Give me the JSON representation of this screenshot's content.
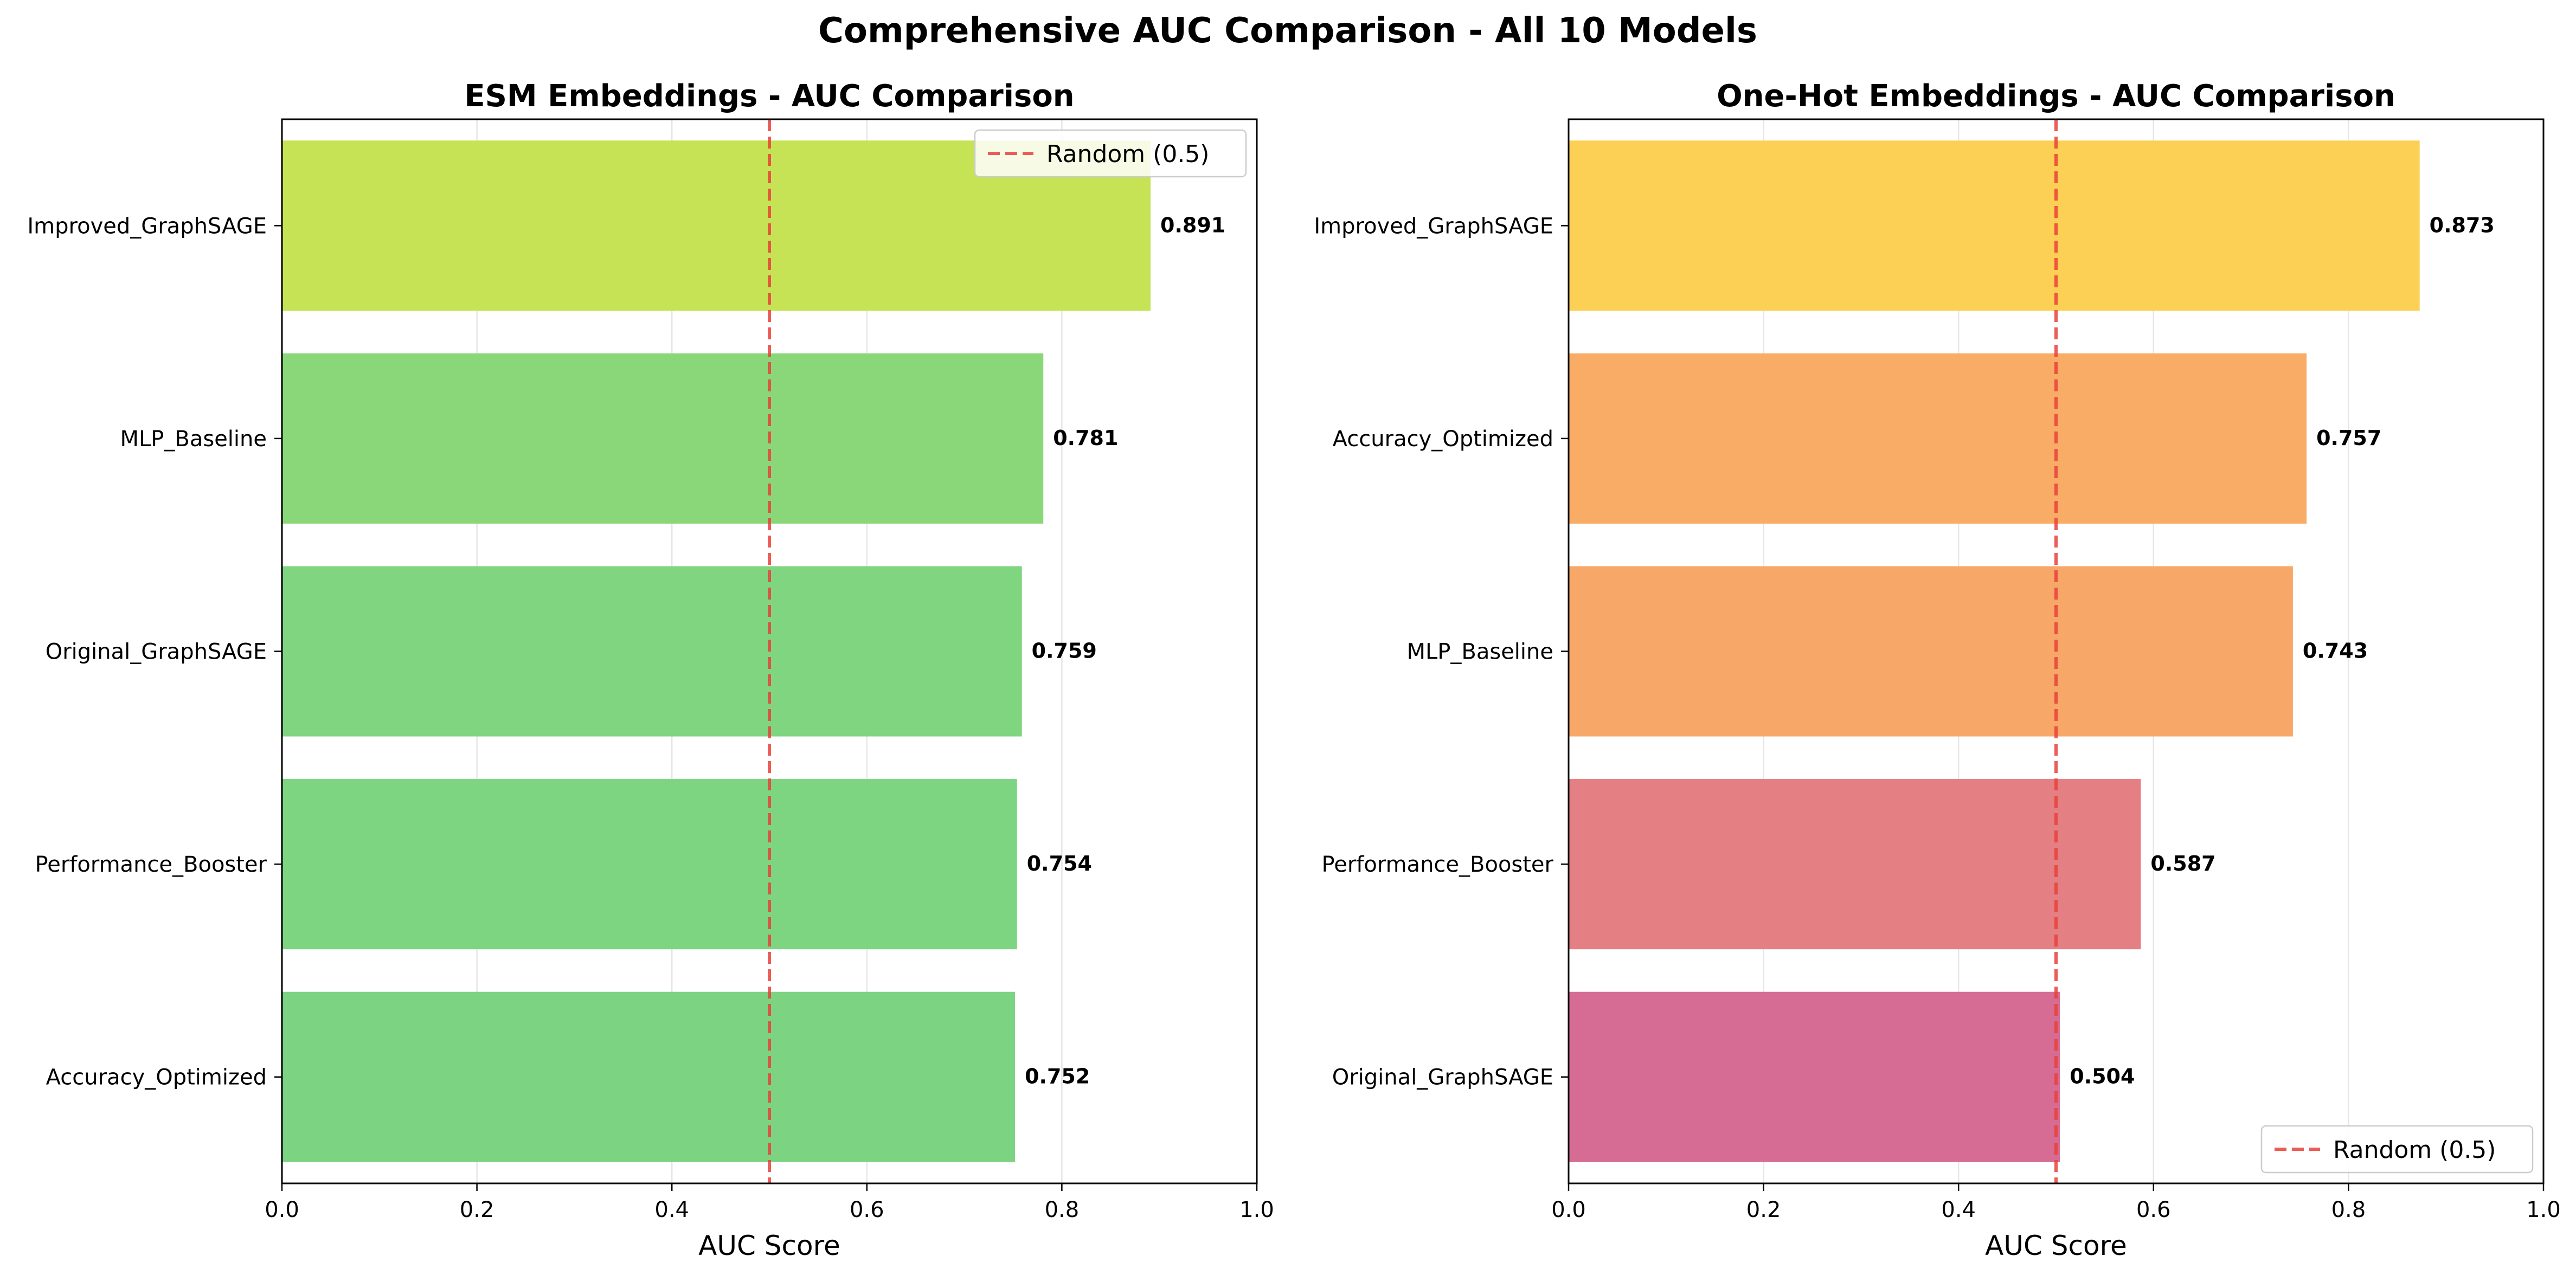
{
  "figure": {
    "title": "Comprehensive AUC Comparison - All 10 Models"
  },
  "chart_data": [
    {
      "type": "bar",
      "orientation": "horizontal",
      "title": "ESM Embeddings - AUC Comparison",
      "xlabel": "AUC Score",
      "ylabel": "",
      "xlim": [
        0.0,
        1.0
      ],
      "xticks": [
        "0.0",
        "0.2",
        "0.4",
        "0.6",
        "0.8",
        "1.0"
      ],
      "grid": "x",
      "categories": [
        "Improved_GraphSAGE",
        "MLP_Baseline",
        "Original_GraphSAGE",
        "Performance_Booster",
        "Accuracy_Optimized"
      ],
      "values": [
        0.891,
        0.781,
        0.759,
        0.754,
        0.752
      ],
      "value_labels": [
        "0.891",
        "0.781",
        "0.759",
        "0.754",
        "0.752"
      ],
      "colors": [
        "#c5e354",
        "#89d779",
        "#7fd580",
        "#7dd481",
        "#7cd381"
      ],
      "reference_line": {
        "x": 0.5,
        "label": "Random (0.5)",
        "color": "#e8413a",
        "style": "dashed"
      },
      "legend_position": "upper right"
    },
    {
      "type": "bar",
      "orientation": "horizontal",
      "title": "One-Hot Embeddings - AUC Comparison",
      "xlabel": "AUC Score",
      "ylabel": "",
      "xlim": [
        0.0,
        1.0
      ],
      "xticks": [
        "0.0",
        "0.2",
        "0.4",
        "0.6",
        "0.8",
        "1.0"
      ],
      "grid": "x",
      "categories": [
        "Improved_GraphSAGE",
        "Accuracy_Optimized",
        "MLP_Baseline",
        "Performance_Booster",
        "Original_GraphSAGE"
      ],
      "values": [
        0.873,
        0.757,
        0.743,
        0.587,
        0.504
      ],
      "value_labels": [
        "0.873",
        "0.757",
        "0.743",
        "0.587",
        "0.504"
      ],
      "colors": [
        "#fcd054",
        "#f8ac65",
        "#f7a869",
        "#e47f83",
        "#d66c93"
      ],
      "reference_line": {
        "x": 0.5,
        "label": "Random (0.5)",
        "color": "#e8413a",
        "style": "dashed"
      },
      "legend_position": "lower right"
    }
  ]
}
